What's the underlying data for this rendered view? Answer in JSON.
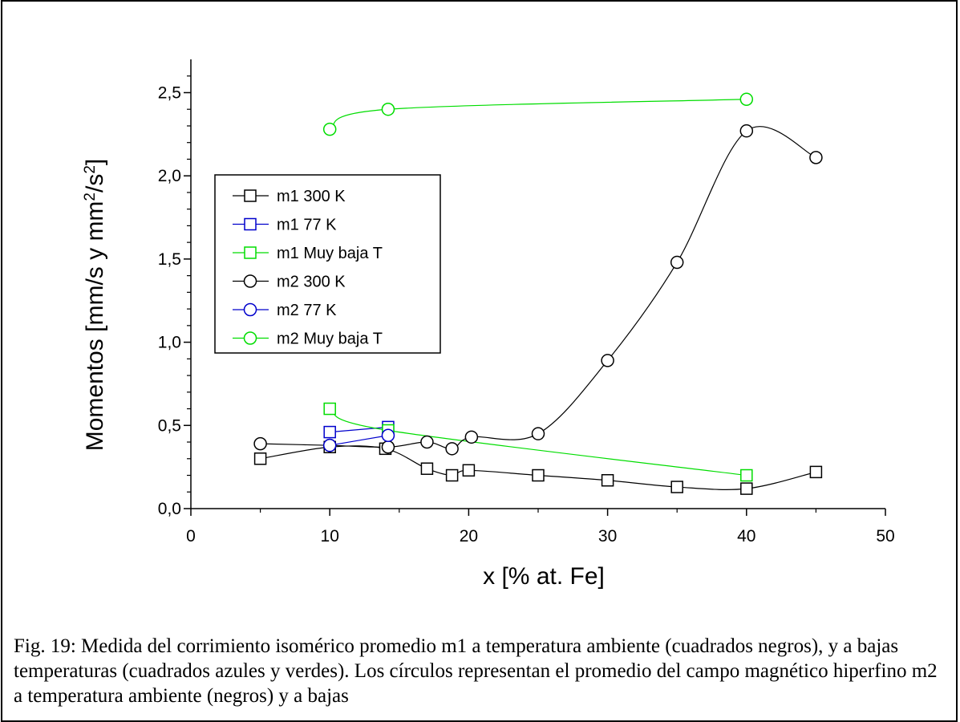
{
  "chart_data": {
    "type": "scatter",
    "xlabel": "x [% at. Fe]",
    "ylabel": "Momentos [mm/s y mm²/s²]",
    "xlim": [
      0,
      50
    ],
    "ylim": [
      0,
      2.7
    ],
    "x_ticks": [
      0,
      10,
      20,
      30,
      40,
      50
    ],
    "x_tick_labels": [
      "0",
      "10",
      "20",
      "30",
      "40",
      "50"
    ],
    "y_ticks": [
      0,
      0.5,
      1.0,
      1.5,
      2.0,
      2.5
    ],
    "y_tick_labels": [
      "0,0",
      "0,5",
      "1,0",
      "1,5",
      "2,0",
      "2,5"
    ],
    "legend_position": "left-middle",
    "series": [
      {
        "name": "m1 300 K",
        "marker": "square",
        "color": "#000000",
        "x": [
          5,
          10,
          14,
          17,
          18.8,
          20,
          25,
          30,
          35,
          40,
          45
        ],
        "y": [
          0.3,
          0.37,
          0.36,
          0.24,
          0.2,
          0.23,
          0.2,
          0.17,
          0.13,
          0.12,
          0.22
        ]
      },
      {
        "name": "m1 77 K",
        "marker": "square",
        "color": "#0000cc",
        "x": [
          10,
          14.2
        ],
        "y": [
          0.46,
          0.49
        ]
      },
      {
        "name": "m1 Muy baja T",
        "marker": "square",
        "color": "#00dd00",
        "x": [
          10,
          14.2,
          40
        ],
        "y": [
          0.6,
          0.47,
          0.2
        ]
      },
      {
        "name": "m2 300 K",
        "marker": "circle",
        "color": "#000000",
        "x": [
          5,
          10,
          14.2,
          17,
          18.8,
          20.2,
          25,
          30,
          35,
          40,
          45
        ],
        "y": [
          0.39,
          0.38,
          0.37,
          0.4,
          0.36,
          0.43,
          0.45,
          0.89,
          1.48,
          2.27,
          2.11
        ]
      },
      {
        "name": "m2 77 K",
        "marker": "circle",
        "color": "#0000cc",
        "x": [
          10,
          14.2
        ],
        "y": [
          0.38,
          0.44
        ]
      },
      {
        "name": "m2 Muy baja T",
        "marker": "circle",
        "color": "#00dd00",
        "x": [
          10,
          14.2,
          40
        ],
        "y": [
          2.28,
          2.4,
          2.46
        ]
      }
    ]
  },
  "caption": "Fig. 19: Medida del corrimiento isomérico promedio m1 a temperatura ambiente (cuadrados negros), y a bajas temperaturas (cuadrados azules y verdes). Los círculos representan el promedio del campo magnético hiperfino m2 a temperatura ambiente (negros) y a bajas"
}
